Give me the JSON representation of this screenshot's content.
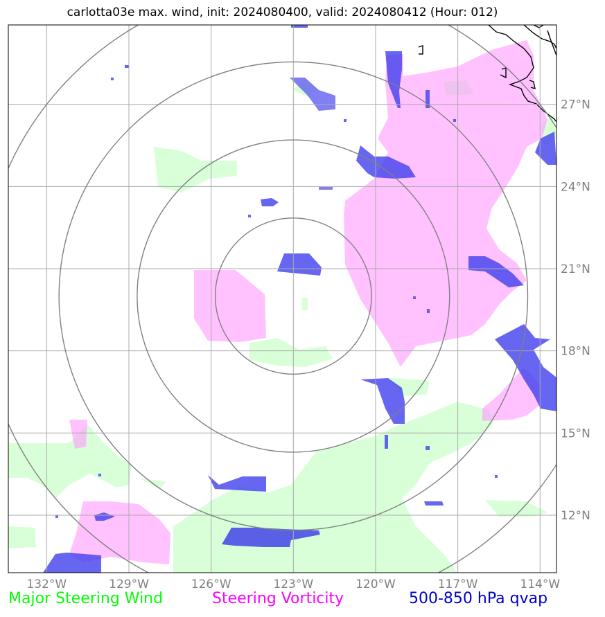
{
  "title": "carlotta03e max. wind, init: 2024080400, valid: 2024080412 (Hour: 012)",
  "map": {
    "lon_range": [
      -133.4,
      -113.4
    ],
    "lat_range": [
      9.9,
      29.9
    ],
    "lon_ticks": [
      {
        "value": -132,
        "label": "132°W"
      },
      {
        "value": -129,
        "label": "129°W"
      },
      {
        "value": -126,
        "label": "126°W"
      },
      {
        "value": -123,
        "label": "123°W"
      },
      {
        "value": -120,
        "label": "120°W"
      },
      {
        "value": -117,
        "label": "117°W"
      },
      {
        "value": -114,
        "label": "114°W"
      }
    ],
    "lat_ticks": [
      {
        "value": 12,
        "label": "12°N"
      },
      {
        "value": 15,
        "label": "15°N"
      },
      {
        "value": 18,
        "label": "18°N"
      },
      {
        "value": 21,
        "label": "21°N"
      },
      {
        "value": 24,
        "label": "24°N"
      },
      {
        "value": 27,
        "label": "27°N"
      }
    ],
    "range_rings": {
      "center": {
        "lon": -123.0,
        "lat": 20.0
      },
      "radii_deg": [
        2.85,
        5.7,
        8.55,
        11.4
      ]
    },
    "colors": {
      "steering_wind": "#ccffcc",
      "steering_vorticity": "#ff99ff",
      "qvap": "#3333ee",
      "grid": "#aaaaaa",
      "rings": "#808080",
      "coast": "#000000"
    }
  },
  "legend": {
    "wind": {
      "label": "Major Steering Wind",
      "color": "#00ff00"
    },
    "vorticity": {
      "label": "Steering Vorticity",
      "color": "#ff00ff"
    },
    "qvap": {
      "label": "500-850 hPa qvap",
      "color": "#0000cc"
    }
  }
}
